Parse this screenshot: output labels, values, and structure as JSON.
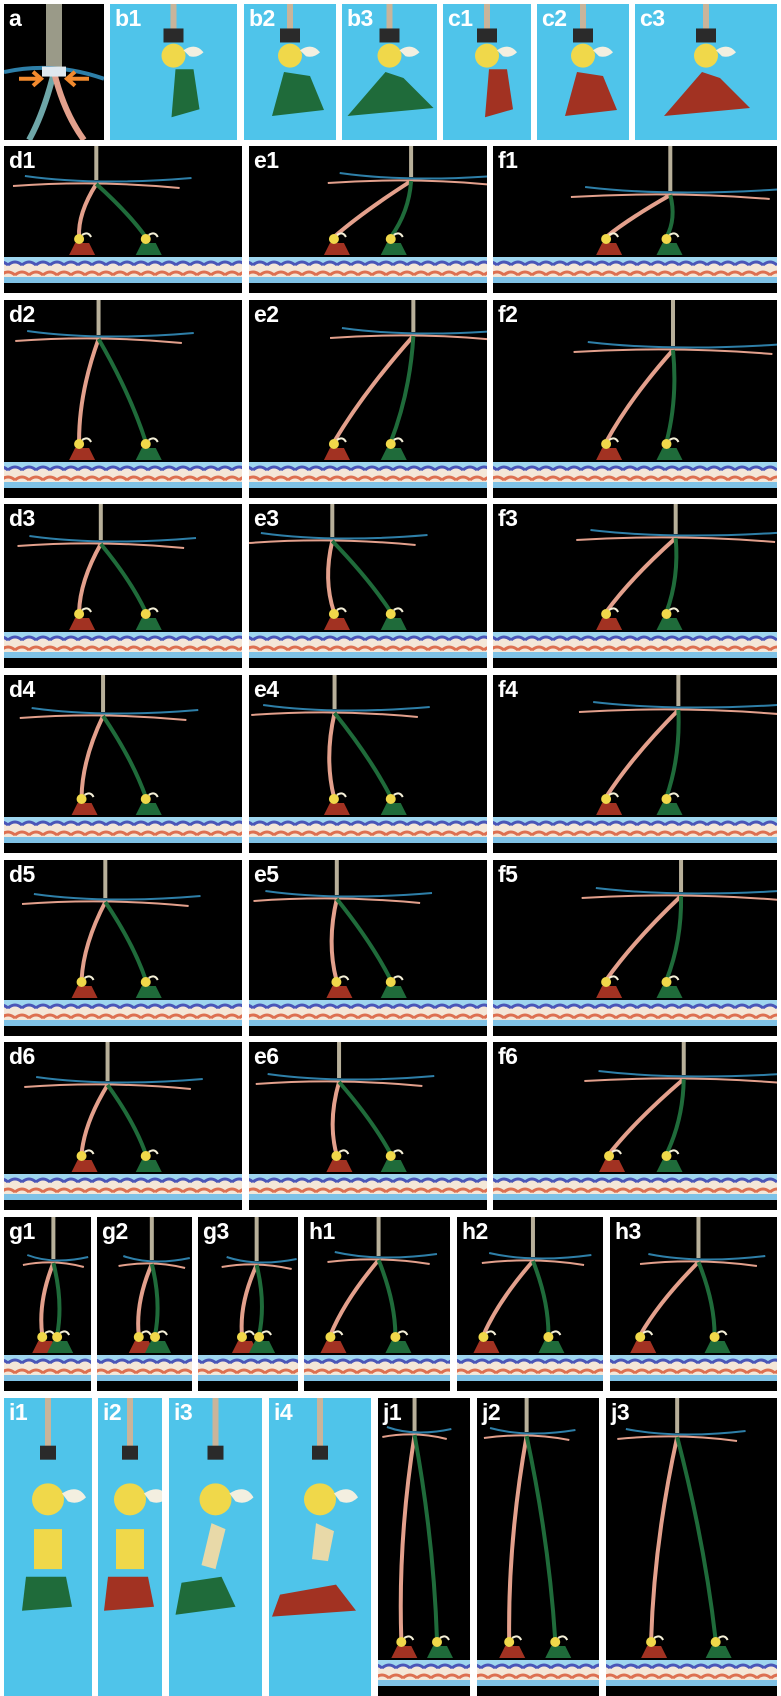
{
  "figure": {
    "colors": {
      "background_dark": "#000000",
      "background_studio": "#4fc4ea",
      "strand_pink": "#e3a08c",
      "strand_blue": "#2e7fa8",
      "leg_green": "#1f6b3a",
      "foot_red": "#a23222",
      "joint_yellow": "#f0d84a",
      "rail_wave_blue": "#4a56b8",
      "rail_wave_red": "#d85a3a",
      "arrow_orange": "#f28a2e"
    },
    "rows": [
      {
        "panels": [
          {
            "label": "a",
            "kind": "closeup"
          },
          {
            "label": "b1",
            "kind": "studio",
            "part": "foot",
            "pose": "folded"
          },
          {
            "label": "b2",
            "kind": "studio",
            "part": "foot",
            "pose": "half"
          },
          {
            "label": "b3",
            "kind": "studio",
            "part": "foot",
            "pose": "flat"
          },
          {
            "label": "c1",
            "kind": "studio",
            "part": "foot",
            "pose": "folded"
          },
          {
            "label": "c2",
            "kind": "studio",
            "part": "foot",
            "pose": "half"
          },
          {
            "label": "c3",
            "kind": "studio",
            "part": "foot",
            "pose": "flat"
          }
        ]
      },
      {
        "panels": [
          {
            "label": "d1",
            "kind": "walk"
          },
          {
            "label": "e1",
            "kind": "walk"
          },
          {
            "label": "f1",
            "kind": "walk"
          }
        ]
      },
      {
        "panels": [
          {
            "label": "d2",
            "kind": "walk"
          },
          {
            "label": "e2",
            "kind": "walk"
          },
          {
            "label": "f2",
            "kind": "walk"
          }
        ]
      },
      {
        "panels": [
          {
            "label": "d3",
            "kind": "walk"
          },
          {
            "label": "e3",
            "kind": "walk"
          },
          {
            "label": "f3",
            "kind": "walk"
          }
        ]
      },
      {
        "panels": [
          {
            "label": "d4",
            "kind": "walk"
          },
          {
            "label": "e4",
            "kind": "walk"
          },
          {
            "label": "f4",
            "kind": "walk"
          }
        ]
      },
      {
        "panels": [
          {
            "label": "d5",
            "kind": "walk"
          },
          {
            "label": "e5",
            "kind": "walk"
          },
          {
            "label": "f5",
            "kind": "walk"
          }
        ]
      },
      {
        "panels": [
          {
            "label": "d6",
            "kind": "walk"
          },
          {
            "label": "e6",
            "kind": "walk"
          },
          {
            "label": "f6",
            "kind": "walk"
          }
        ]
      },
      {
        "panels": [
          {
            "label": "g1",
            "kind": "walk"
          },
          {
            "label": "g2",
            "kind": "walk"
          },
          {
            "label": "g3",
            "kind": "walk"
          },
          {
            "label": "h1",
            "kind": "walk"
          },
          {
            "label": "h2",
            "kind": "walk"
          },
          {
            "label": "h3",
            "kind": "walk"
          }
        ]
      },
      {
        "panels": [
          {
            "label": "i1",
            "kind": "studio",
            "part": "joint",
            "pose": "upright"
          },
          {
            "label": "i2",
            "kind": "studio",
            "part": "joint",
            "pose": "upright"
          },
          {
            "label": "i3",
            "kind": "studio",
            "part": "joint",
            "pose": "bent"
          },
          {
            "label": "i4",
            "kind": "studio",
            "part": "joint",
            "pose": "flat"
          },
          {
            "label": "j1",
            "kind": "walk"
          },
          {
            "label": "j2",
            "kind": "walk"
          },
          {
            "label": "j3",
            "kind": "walk"
          }
        ]
      }
    ]
  }
}
